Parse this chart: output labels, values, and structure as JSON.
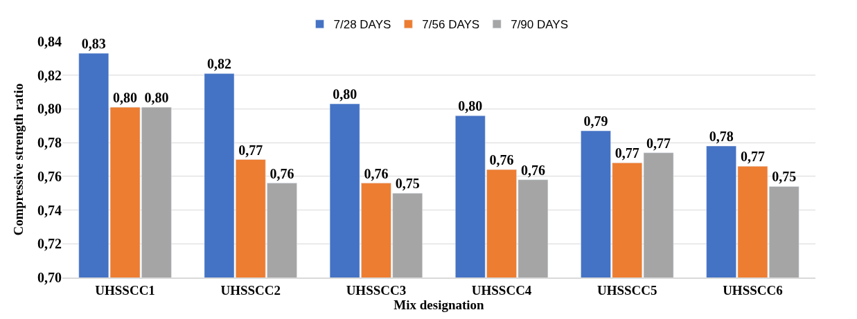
{
  "chart_data": {
    "type": "bar",
    "xlabel": "Mix designation",
    "ylabel": "Compressive strength ratio",
    "categories": [
      "UHSSCC1",
      "UHSSCC2",
      "UHSSCC3",
      "UHSSCC4",
      "UHSSCC5",
      "UHSSCC6"
    ],
    "series": [
      {
        "name": "7/28 DAYS",
        "color": "#4472c4",
        "values": [
          0.833,
          0.821,
          0.803,
          0.796,
          0.787,
          0.778
        ],
        "value_labels": [
          "0,83",
          "0,82",
          "0,80",
          "0,80",
          "0,79",
          "0,78"
        ]
      },
      {
        "name": "7/56 DAYS",
        "color": "#ed7d31",
        "values": [
          0.801,
          0.77,
          0.756,
          0.764,
          0.768,
          0.766
        ],
        "value_labels": [
          "0,80",
          "0,77",
          "0,76",
          "0,76",
          "0,77",
          "0,77"
        ]
      },
      {
        "name": "7/90 DAYS",
        "color": "#a5a5a5",
        "values": [
          0.801,
          0.756,
          0.75,
          0.758,
          0.774,
          0.754
        ],
        "value_labels": [
          "0,80",
          "0,76",
          "0,75",
          "0,76",
          "0,77",
          "0,75"
        ]
      }
    ],
    "ylim": [
      0.7,
      0.84
    ],
    "yticks": [
      {
        "value": 0.7,
        "label": "0,70"
      },
      {
        "value": 0.72,
        "label": "0,72"
      },
      {
        "value": 0.74,
        "label": "0,74"
      },
      {
        "value": 0.76,
        "label": "0,76"
      },
      {
        "value": 0.78,
        "label": "0,78"
      },
      {
        "value": 0.8,
        "label": "0,80"
      },
      {
        "value": 0.82,
        "label": "0,82"
      },
      {
        "value": 0.84,
        "label": "0,84"
      }
    ],
    "grid": "y",
    "legend": "top"
  }
}
